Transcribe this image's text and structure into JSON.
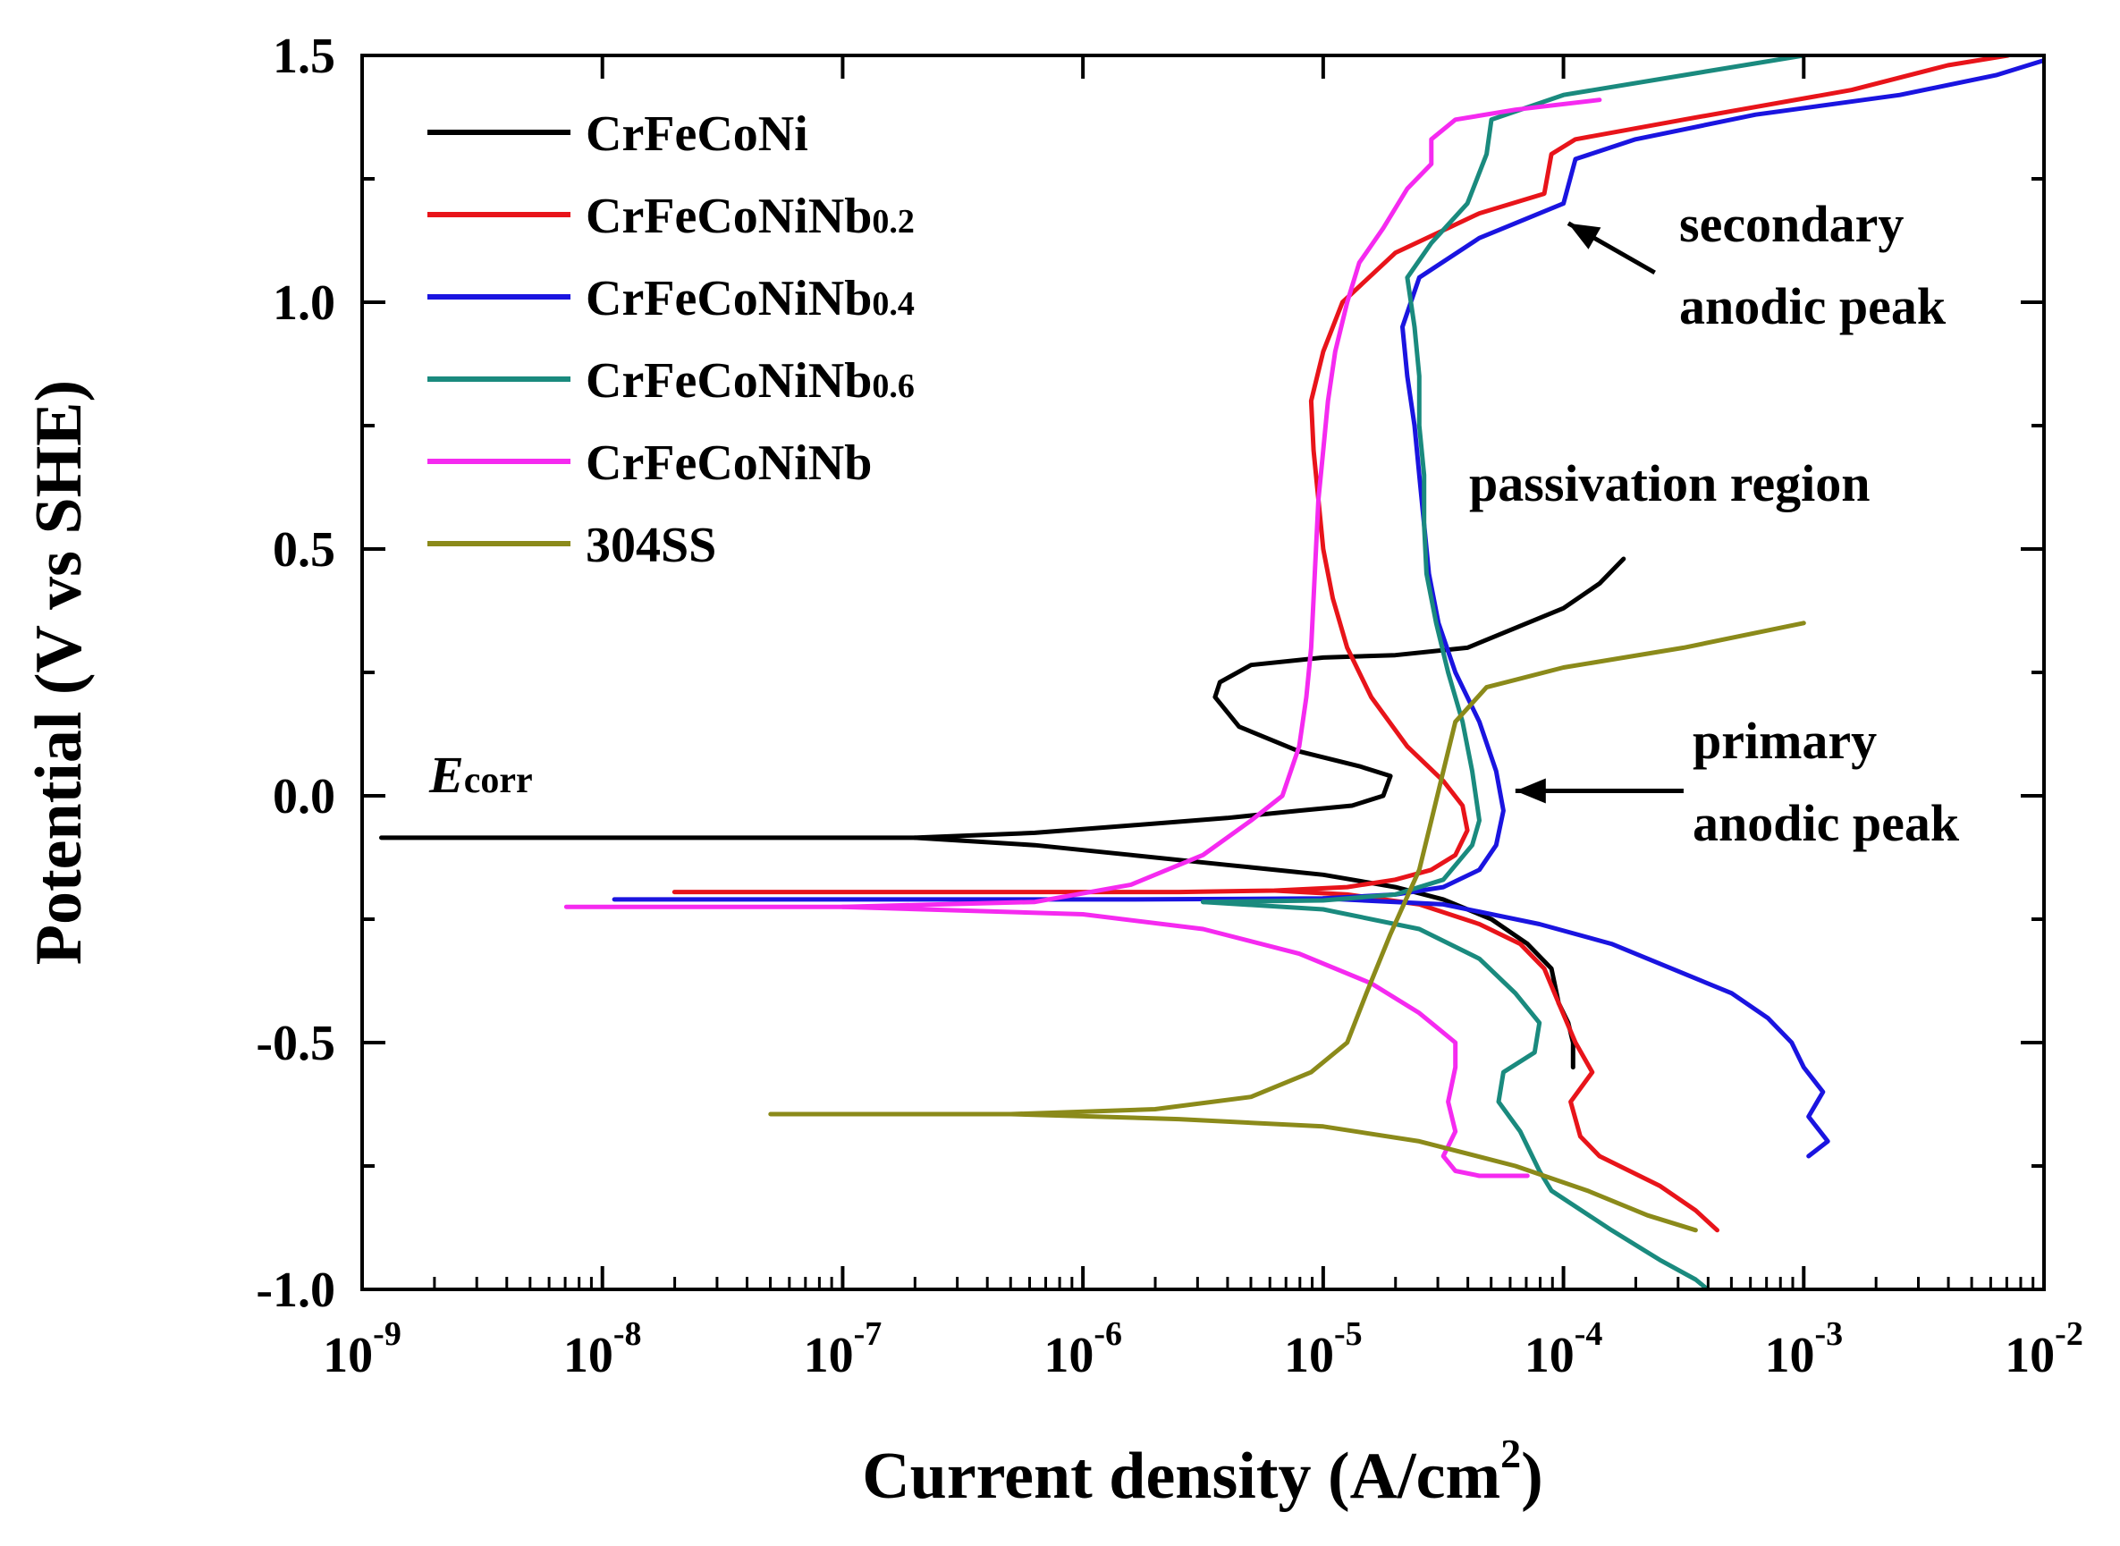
{
  "chart_data": {
    "type": "line",
    "title": "",
    "xlabel": "Current density (A/cm",
    "xlabel_sup": "2",
    "xlabel_end": ")",
    "ylabel": "Potential (V vs SHE)",
    "xscale": "log",
    "xlim": [
      -9,
      -2
    ],
    "ylim": [
      -1.0,
      1.5
    ],
    "xticks": [
      {
        "exp": -9,
        "base": "10",
        "sup": "-9"
      },
      {
        "exp": -8,
        "base": "10",
        "sup": "-8"
      },
      {
        "exp": -7,
        "base": "10",
        "sup": "-7"
      },
      {
        "exp": -6,
        "base": "10",
        "sup": "-6"
      },
      {
        "exp": -5,
        "base": "10",
        "sup": "-5"
      },
      {
        "exp": -4,
        "base": "10",
        "sup": "-4"
      },
      {
        "exp": -3,
        "base": "10",
        "sup": "-3"
      },
      {
        "exp": -2,
        "base": "10",
        "sup": "-2"
      }
    ],
    "yticks": [
      {
        "value": 1.5,
        "label": "1.5"
      },
      {
        "value": 1.0,
        "label": "1.0"
      },
      {
        "value": 0.5,
        "label": "0.5"
      },
      {
        "value": 0.0,
        "label": "0.0"
      },
      {
        "value": -0.5,
        "label": "-0.5"
      },
      {
        "value": -1.0,
        "label": "-1.0"
      }
    ],
    "legend_position": "top-left",
    "series": [
      {
        "name": "CrFeCoNi",
        "name_base": "CrFeCoNi",
        "name_sub": "",
        "color": "#000000",
        "points": [
          [
            -8.92,
            -0.085
          ],
          [
            -7.5,
            -0.085
          ],
          [
            -6.7,
            -0.085
          ],
          [
            -6.2,
            -0.075
          ],
          [
            -5.8,
            -0.06
          ],
          [
            -5.4,
            -0.045
          ],
          [
            -5.1,
            -0.03
          ],
          [
            -4.88,
            -0.02
          ],
          [
            -4.75,
            0.0
          ],
          [
            -4.72,
            0.04
          ],
          [
            -4.85,
            0.06
          ],
          [
            -5.1,
            0.09
          ],
          [
            -5.35,
            0.14
          ],
          [
            -5.45,
            0.2
          ],
          [
            -5.43,
            0.23
          ],
          [
            -5.3,
            0.265
          ],
          [
            -5.0,
            0.28
          ],
          [
            -4.7,
            0.285
          ],
          [
            -4.4,
            0.3
          ],
          [
            -4.2,
            0.34
          ],
          [
            -4.0,
            0.38
          ],
          [
            -3.85,
            0.43
          ],
          [
            -3.75,
            0.48
          ]
        ]
      },
      {
        "name": "CrFeCoNi",
        "name_base": "CrFeCoNi",
        "name_sub": "",
        "color": "#000000",
        "hide_legend": true,
        "points": [
          [
            -6.7,
            -0.085
          ],
          [
            -6.2,
            -0.1
          ],
          [
            -5.8,
            -0.12
          ],
          [
            -5.4,
            -0.14
          ],
          [
            -5.0,
            -0.16
          ],
          [
            -4.7,
            -0.185
          ],
          [
            -4.5,
            -0.21
          ],
          [
            -4.3,
            -0.25
          ],
          [
            -4.15,
            -0.3
          ],
          [
            -4.05,
            -0.35
          ],
          [
            -4.02,
            -0.42
          ],
          [
            -3.98,
            -0.46
          ],
          [
            -3.96,
            -0.5
          ],
          [
            -3.96,
            -0.55
          ]
        ]
      },
      {
        "name": "CrFeCoNiNb0.2",
        "name_base": "CrFeCoNiNb",
        "name_sub": "0.2",
        "color": "#e8141a",
        "points": [
          [
            -7.7,
            -0.195
          ],
          [
            -6.5,
            -0.195
          ],
          [
            -5.6,
            -0.195
          ],
          [
            -5.2,
            -0.192
          ],
          [
            -4.9,
            -0.185
          ],
          [
            -4.7,
            -0.17
          ],
          [
            -4.55,
            -0.15
          ],
          [
            -4.45,
            -0.12
          ],
          [
            -4.4,
            -0.07
          ],
          [
            -4.42,
            -0.02
          ],
          [
            -4.5,
            0.03
          ],
          [
            -4.65,
            0.1
          ],
          [
            -4.8,
            0.2
          ],
          [
            -4.9,
            0.3
          ],
          [
            -4.96,
            0.4
          ],
          [
            -5.0,
            0.5
          ],
          [
            -5.02,
            0.6
          ],
          [
            -5.04,
            0.7
          ],
          [
            -5.05,
            0.8
          ],
          [
            -5.0,
            0.9
          ],
          [
            -4.92,
            1.0
          ],
          [
            -4.7,
            1.1
          ],
          [
            -4.35,
            1.18
          ],
          [
            -4.08,
            1.22
          ],
          [
            -4.05,
            1.3
          ],
          [
            -3.95,
            1.33
          ],
          [
            -3.5,
            1.37
          ],
          [
            -2.8,
            1.43
          ],
          [
            -2.4,
            1.48
          ],
          [
            -2.15,
            1.5
          ]
        ]
      },
      {
        "name": "CrFeCoNiNb0.2",
        "name_base": "CrFeCoNiNb",
        "name_sub": "0.2",
        "color": "#e8141a",
        "hide_legend": true,
        "points": [
          [
            -5.2,
            -0.192
          ],
          [
            -4.9,
            -0.2
          ],
          [
            -4.6,
            -0.22
          ],
          [
            -4.35,
            -0.26
          ],
          [
            -4.18,
            -0.3
          ],
          [
            -4.08,
            -0.35
          ],
          [
            -4.02,
            -0.42
          ],
          [
            -3.95,
            -0.5
          ],
          [
            -3.88,
            -0.56
          ],
          [
            -3.97,
            -0.62
          ],
          [
            -3.93,
            -0.69
          ],
          [
            -3.85,
            -0.73
          ],
          [
            -3.6,
            -0.79
          ],
          [
            -3.45,
            -0.84
          ],
          [
            -3.36,
            -0.88
          ]
        ]
      },
      {
        "name": "CrFeCoNiNb0.4",
        "name_base": "CrFeCoNiNb",
        "name_sub": "0.4",
        "color": "#1a14e0",
        "points": [
          [
            -7.95,
            -0.21
          ],
          [
            -6.8,
            -0.21
          ],
          [
            -5.8,
            -0.21
          ],
          [
            -5.0,
            -0.208
          ],
          [
            -4.7,
            -0.2
          ],
          [
            -4.5,
            -0.185
          ],
          [
            -4.35,
            -0.15
          ],
          [
            -4.28,
            -0.1
          ],
          [
            -4.25,
            -0.03
          ],
          [
            -4.28,
            0.05
          ],
          [
            -4.35,
            0.15
          ],
          [
            -4.45,
            0.25
          ],
          [
            -4.52,
            0.35
          ],
          [
            -4.56,
            0.45
          ],
          [
            -4.58,
            0.55
          ],
          [
            -4.6,
            0.65
          ],
          [
            -4.62,
            0.75
          ],
          [
            -4.65,
            0.85
          ],
          [
            -4.67,
            0.95
          ],
          [
            -4.6,
            1.05
          ],
          [
            -4.35,
            1.13
          ],
          [
            -4.0,
            1.2
          ],
          [
            -3.95,
            1.29
          ],
          [
            -3.7,
            1.33
          ],
          [
            -3.2,
            1.38
          ],
          [
            -2.6,
            1.42
          ],
          [
            -2.2,
            1.46
          ],
          [
            -2.0,
            1.49
          ]
        ]
      },
      {
        "name": "CrFeCoNiNb0.4",
        "name_base": "CrFeCoNiNb",
        "name_sub": "0.4",
        "color": "#1a14e0",
        "hide_legend": true,
        "points": [
          [
            -5.0,
            -0.208
          ],
          [
            -4.5,
            -0.22
          ],
          [
            -4.1,
            -0.26
          ],
          [
            -3.8,
            -0.3
          ],
          [
            -3.5,
            -0.36
          ],
          [
            -3.3,
            -0.4
          ],
          [
            -3.15,
            -0.45
          ],
          [
            -3.05,
            -0.5
          ],
          [
            -3.0,
            -0.55
          ],
          [
            -2.92,
            -0.6
          ],
          [
            -2.98,
            -0.65
          ],
          [
            -2.9,
            -0.7
          ],
          [
            -2.98,
            -0.73
          ]
        ]
      },
      {
        "name": "CrFeCoNiNb0.6",
        "name_base": "CrFeCoNiNb",
        "name_sub": "0.6",
        "color": "#1a8a7e",
        "points": [
          [
            -5.5,
            -0.215
          ],
          [
            -5.0,
            -0.212
          ],
          [
            -4.7,
            -0.2
          ],
          [
            -4.5,
            -0.17
          ],
          [
            -4.38,
            -0.1
          ],
          [
            -4.35,
            -0.05
          ],
          [
            -4.38,
            0.05
          ],
          [
            -4.42,
            0.15
          ],
          [
            -4.48,
            0.25
          ],
          [
            -4.53,
            0.35
          ],
          [
            -4.57,
            0.45
          ],
          [
            -4.58,
            0.55
          ],
          [
            -4.58,
            0.65
          ],
          [
            -4.6,
            0.75
          ],
          [
            -4.6,
            0.85
          ],
          [
            -4.62,
            0.95
          ],
          [
            -4.65,
            1.05
          ],
          [
            -4.55,
            1.12
          ],
          [
            -4.4,
            1.2
          ],
          [
            -4.32,
            1.3
          ],
          [
            -4.3,
            1.37
          ],
          [
            -4.0,
            1.42
          ],
          [
            -3.5,
            1.46
          ],
          [
            -3.0,
            1.5
          ]
        ]
      },
      {
        "name": "CrFeCoNiNb0.6",
        "name_base": "CrFeCoNiNb",
        "name_sub": "0.6",
        "color": "#1a8a7e",
        "hide_legend": true,
        "points": [
          [
            -5.5,
            -0.215
          ],
          [
            -5.0,
            -0.23
          ],
          [
            -4.6,
            -0.27
          ],
          [
            -4.35,
            -0.33
          ],
          [
            -4.2,
            -0.4
          ],
          [
            -4.1,
            -0.46
          ],
          [
            -4.12,
            -0.52
          ],
          [
            -4.25,
            -0.56
          ],
          [
            -4.27,
            -0.62
          ],
          [
            -4.18,
            -0.68
          ],
          [
            -4.1,
            -0.76
          ],
          [
            -4.05,
            -0.8
          ],
          [
            -3.8,
            -0.88
          ],
          [
            -3.6,
            -0.94
          ],
          [
            -3.45,
            -0.98
          ],
          [
            -3.4,
            -1.0
          ]
        ]
      },
      {
        "name": "CrFeCoNiNb",
        "name_base": "CrFeCoNiNb",
        "name_sub": "",
        "color": "#f52af0",
        "points": [
          [
            -8.15,
            -0.225
          ],
          [
            -7.0,
            -0.225
          ],
          [
            -6.2,
            -0.215
          ],
          [
            -5.8,
            -0.18
          ],
          [
            -5.5,
            -0.12
          ],
          [
            -5.3,
            -0.05
          ],
          [
            -5.17,
            0.0
          ],
          [
            -5.1,
            0.1
          ],
          [
            -5.07,
            0.2
          ],
          [
            -5.05,
            0.3
          ],
          [
            -5.04,
            0.4
          ],
          [
            -5.03,
            0.5
          ],
          [
            -5.02,
            0.6
          ],
          [
            -5.0,
            0.7
          ],
          [
            -4.98,
            0.8
          ],
          [
            -4.95,
            0.9
          ],
          [
            -4.9,
            1.0
          ],
          [
            -4.85,
            1.08
          ],
          [
            -4.75,
            1.15
          ],
          [
            -4.65,
            1.23
          ],
          [
            -4.55,
            1.28
          ],
          [
            -4.55,
            1.33
          ],
          [
            -4.45,
            1.37
          ],
          [
            -4.2,
            1.39
          ],
          [
            -3.85,
            1.41
          ]
        ]
      },
      {
        "name": "CrFeCoNiNb",
        "name_base": "CrFeCoNiNb",
        "name_sub": "",
        "color": "#f52af0",
        "hide_legend": true,
        "points": [
          [
            -7.0,
            -0.225
          ],
          [
            -6.0,
            -0.24
          ],
          [
            -5.5,
            -0.27
          ],
          [
            -5.1,
            -0.32
          ],
          [
            -4.8,
            -0.38
          ],
          [
            -4.6,
            -0.44
          ],
          [
            -4.45,
            -0.5
          ],
          [
            -4.45,
            -0.55
          ],
          [
            -4.48,
            -0.62
          ],
          [
            -4.45,
            -0.68
          ],
          [
            -4.5,
            -0.73
          ],
          [
            -4.45,
            -0.76
          ],
          [
            -4.35,
            -0.77
          ],
          [
            -4.15,
            -0.77
          ]
        ]
      },
      {
        "name": "304SS",
        "name_base": "304SS",
        "name_sub": "",
        "color": "#8b8a1a",
        "points": [
          [
            -7.3,
            -0.645
          ],
          [
            -6.3,
            -0.645
          ],
          [
            -5.7,
            -0.635
          ],
          [
            -5.3,
            -0.61
          ],
          [
            -5.05,
            -0.56
          ],
          [
            -4.9,
            -0.5
          ],
          [
            -4.82,
            -0.4
          ],
          [
            -4.72,
            -0.28
          ],
          [
            -4.6,
            -0.15
          ],
          [
            -4.55,
            -0.05
          ],
          [
            -4.5,
            0.05
          ],
          [
            -4.45,
            0.15
          ],
          [
            -4.32,
            0.22
          ],
          [
            -4.0,
            0.26
          ],
          [
            -3.5,
            0.3
          ],
          [
            -3.2,
            0.33
          ],
          [
            -3.0,
            0.35
          ]
        ]
      },
      {
        "name": "304SS",
        "name_base": "304SS",
        "name_sub": "",
        "color": "#8b8a1a",
        "hide_legend": true,
        "points": [
          [
            -6.3,
            -0.645
          ],
          [
            -5.6,
            -0.655
          ],
          [
            -5.0,
            -0.67
          ],
          [
            -4.6,
            -0.7
          ],
          [
            -4.2,
            -0.75
          ],
          [
            -3.9,
            -0.8
          ],
          [
            -3.65,
            -0.85
          ],
          [
            -3.45,
            -0.88
          ]
        ]
      }
    ],
    "annotations": [
      {
        "id": "secondary",
        "lines": [
          "secondary",
          "anodic peak"
        ],
        "arrow_to": [
          -3.98,
          1.16
        ],
        "arrow_from": [
          -3.62,
          1.06
        ]
      },
      {
        "id": "passivation",
        "lines": [
          "passivation region"
        ]
      },
      {
        "id": "primary",
        "lines": [
          "primary",
          "anodic peak"
        ],
        "arrow_to": [
          -4.2,
          0.01
        ],
        "arrow_from": [
          -3.5,
          0.01
        ]
      },
      {
        "id": "ecorr",
        "main": "E",
        "sub": "corr"
      }
    ]
  }
}
